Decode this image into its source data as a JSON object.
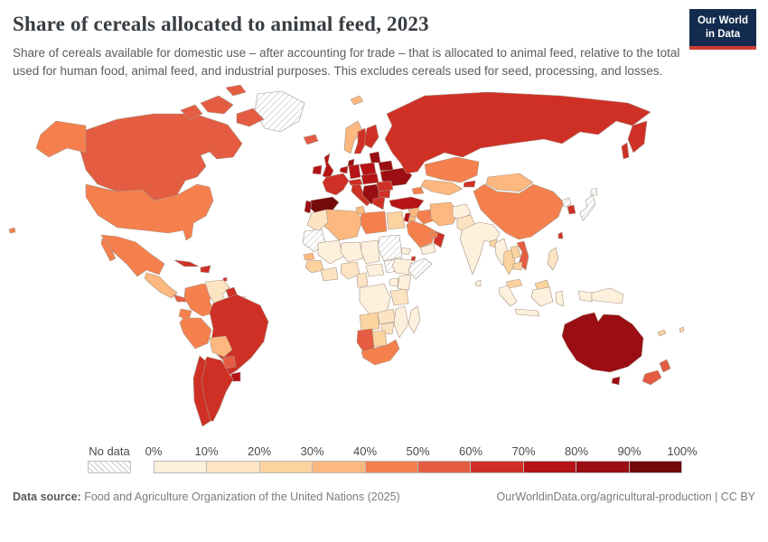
{
  "header": {
    "title": "Share of cereals allocated to animal feed, 2023",
    "logo": {
      "line1": "Our World",
      "line2": "in Data"
    }
  },
  "subtitle": "Share of cereals available for domestic use – after accounting for trade – that is allocated to animal feed, relative to the total used for human food, animal feed, and industrial purposes. This excludes cereals used for seed, processing, and losses.",
  "legend": {
    "no_data_label": "No data",
    "tick_labels": [
      "0%",
      "10%",
      "20%",
      "30%",
      "40%",
      "50%",
      "60%",
      "70%",
      "80%",
      "90%",
      "100%"
    ],
    "colors": [
      "#fdf0dc",
      "#fce4c3",
      "#fbd39f",
      "#fcb87f",
      "#f5804e",
      "#e45c42",
      "#cf3026",
      "#b61317",
      "#9a0d12",
      "#740b09"
    ]
  },
  "footer": {
    "source_label": "Data source:",
    "source_text": " Food and Agriculture Organization of the United Nations (2025)",
    "citation": "OurWorldinData.org/agricultural-production | CC BY"
  },
  "chart_data": {
    "type": "heatmap",
    "subtype": "choropleth-world-map",
    "title": "Share of cereals allocated to animal feed, 2023",
    "unit": "%",
    "colorscale": {
      "domain": [
        0,
        100
      ],
      "step": 10,
      "no_data": "hatched",
      "colors": [
        "#fdf0dc",
        "#fce4c3",
        "#fbd39f",
        "#fcb87f",
        "#f5804e",
        "#e45c42",
        "#cf3026",
        "#b61317",
        "#9a0d12",
        "#740b09"
      ]
    },
    "countries": [
      {
        "name": "Greenland",
        "value": null
      },
      {
        "name": "Canada",
        "value": 55
      },
      {
        "name": "United States",
        "value": 45
      },
      {
        "name": "Mexico",
        "value": 45
      },
      {
        "name": "Guatemala",
        "value": 34
      },
      {
        "name": "Costa Rica",
        "value": 56
      },
      {
        "name": "Cuba",
        "value": 62
      },
      {
        "name": "Dominican Republic",
        "value": 62
      },
      {
        "name": "Trinidad and Tobago",
        "value": 62
      },
      {
        "name": "Colombia",
        "value": 45
      },
      {
        "name": "Venezuela",
        "value": 14
      },
      {
        "name": "Guyana",
        "value": 65
      },
      {
        "name": "Suriname",
        "value": null
      },
      {
        "name": "Ecuador",
        "value": 45
      },
      {
        "name": "Peru",
        "value": 44
      },
      {
        "name": "Brazil",
        "value": 65
      },
      {
        "name": "Bolivia",
        "value": 36
      },
      {
        "name": "Paraguay",
        "value": 55
      },
      {
        "name": "Uruguay",
        "value": 72
      },
      {
        "name": "Argentina",
        "value": 65
      },
      {
        "name": "Chile",
        "value": 65
      },
      {
        "name": "Iceland",
        "value": 52
      },
      {
        "name": "Ireland",
        "value": 74
      },
      {
        "name": "United Kingdom",
        "value": 72
      },
      {
        "name": "Norway",
        "value": 34
      },
      {
        "name": "Sweden",
        "value": 65
      },
      {
        "name": "Finland",
        "value": 65
      },
      {
        "name": "Denmark",
        "value": 82
      },
      {
        "name": "Lithuania",
        "value": 82
      },
      {
        "name": "Belarus",
        "value": 82
      },
      {
        "name": "Ukraine",
        "value": 82
      },
      {
        "name": "Poland",
        "value": 76
      },
      {
        "name": "Germany",
        "value": 76
      },
      {
        "name": "Belgium",
        "value": 74
      },
      {
        "name": "France",
        "value": 65
      },
      {
        "name": "Spain",
        "value": 93
      },
      {
        "name": "Portugal",
        "value": 82
      },
      {
        "name": "Italy",
        "value": 62
      },
      {
        "name": "Austria",
        "value": 66
      },
      {
        "name": "Hungary",
        "value": 77
      },
      {
        "name": "Romania",
        "value": 65
      },
      {
        "name": "Serbia",
        "value": 85
      },
      {
        "name": "Bulgaria",
        "value": 65
      },
      {
        "name": "Greece",
        "value": 62
      },
      {
        "name": "Svalbard",
        "value": 35
      },
      {
        "name": "Russia",
        "value": 65
      },
      {
        "name": "Kazakhstan",
        "value": 42
      },
      {
        "name": "Uzbekistan",
        "value": 35
      },
      {
        "name": "Kyrgyzstan",
        "value": 62
      },
      {
        "name": "Azerbaijan",
        "value": 44
      },
      {
        "name": "Turkey",
        "value": 72
      },
      {
        "name": "Syria",
        "value": 37
      },
      {
        "name": "Israel",
        "value": 74
      },
      {
        "name": "Jordan",
        "value": 32
      },
      {
        "name": "Iraq",
        "value": 42
      },
      {
        "name": "Iran",
        "value": 32
      },
      {
        "name": "Afghanistan",
        "value": 3
      },
      {
        "name": "Pakistan",
        "value": 12
      },
      {
        "name": "India",
        "value": 8
      },
      {
        "name": "Bangladesh",
        "value": 25
      },
      {
        "name": "Sri Lanka",
        "value": 8
      },
      {
        "name": "Saudi Arabia",
        "value": 45
      },
      {
        "name": "Yemen",
        "value": 8
      },
      {
        "name": "Oman",
        "value": 62
      },
      {
        "name": "United Arab Emirates",
        "value": 44
      },
      {
        "name": "Egypt",
        "value": 25
      },
      {
        "name": "Libya",
        "value": 44
      },
      {
        "name": "Algeria",
        "value": 34
      },
      {
        "name": "Tunisia",
        "value": 32
      },
      {
        "name": "Morocco",
        "value": 16
      },
      {
        "name": "Mauritania",
        "value": null
      },
      {
        "name": "Mali",
        "value": 5
      },
      {
        "name": "Niger",
        "value": 3
      },
      {
        "name": "Chad",
        "value": 5
      },
      {
        "name": "Sudan",
        "value": null
      },
      {
        "name": "South Sudan",
        "value": null
      },
      {
        "name": "Eritrea",
        "value": 5
      },
      {
        "name": "Djibouti",
        "value": 65
      },
      {
        "name": "Ethiopia",
        "value": 2
      },
      {
        "name": "Somalia",
        "value": null
      },
      {
        "name": "Senegal",
        "value": 38
      },
      {
        "name": "Guinea",
        "value": 22
      },
      {
        "name": "Ghana",
        "value": 12
      },
      {
        "name": "Nigeria",
        "value": 12
      },
      {
        "name": "Cameroon",
        "value": 14
      },
      {
        "name": "Central African Republic",
        "value": 5
      },
      {
        "name": "DR Congo",
        "value": 8
      },
      {
        "name": "Uganda",
        "value": 8
      },
      {
        "name": "Kenya",
        "value": 5
      },
      {
        "name": "Tanzania",
        "value": 15
      },
      {
        "name": "Angola",
        "value": 25
      },
      {
        "name": "Zambia",
        "value": 15
      },
      {
        "name": "Mozambique",
        "value": 6
      },
      {
        "name": "Zimbabwe",
        "value": 16
      },
      {
        "name": "Namibia",
        "value": 55
      },
      {
        "name": "Botswana",
        "value": 28
      },
      {
        "name": "South Africa",
        "value": 47
      },
      {
        "name": "Madagascar",
        "value": 8
      },
      {
        "name": "Mongolia",
        "value": 32
      },
      {
        "name": "China",
        "value": 45
      },
      {
        "name": "North Korea",
        "value": null
      },
      {
        "name": "South Korea",
        "value": 62
      },
      {
        "name": "Japan",
        "value": null
      },
      {
        "name": "Taiwan",
        "value": 62
      },
      {
        "name": "Myanmar",
        "value": 9
      },
      {
        "name": "Thailand",
        "value": 25
      },
      {
        "name": "Laos",
        "value": 27
      },
      {
        "name": "Vietnam",
        "value": 52
      },
      {
        "name": "Cambodia",
        "value": 25
      },
      {
        "name": "Malaysia",
        "value": 27
      },
      {
        "name": "Indonesia",
        "value": 8
      },
      {
        "name": "Papua New Guinea",
        "value": 5
      },
      {
        "name": "Philippines",
        "value": 16
      },
      {
        "name": "Australia",
        "value": 85
      },
      {
        "name": "New Zealand",
        "value": 55
      },
      {
        "name": "New Caledonia",
        "value": 25
      },
      {
        "name": "Fiji",
        "value": 25
      }
    ]
  }
}
